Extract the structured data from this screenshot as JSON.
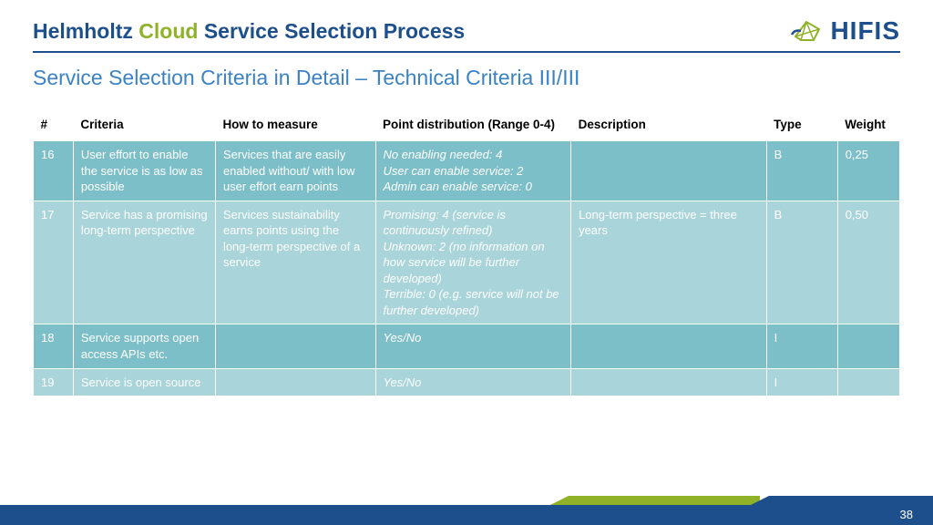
{
  "header": {
    "title_part1": "Helmholtz ",
    "title_part2": "Cloud ",
    "title_part3": "Service Selection Process",
    "logo_text": "HIFIS"
  },
  "subtitle": "Service Selection Criteria in Detail – Technical Criteria III/III",
  "table": {
    "columns": [
      "#",
      "Criteria",
      "How to measure",
      "Point distribution (Range 0-4)",
      "Description",
      "Type",
      "Weight"
    ],
    "rows": [
      {
        "num": "16",
        "criteria": "User effort to enable the service is as low as possible",
        "how": "Services that are easily enabled without/ with low user effort earn points",
        "points": "No enabling needed: 4\nUser can enable service: 2\nAdmin can enable service: 0",
        "desc": "",
        "type": "B",
        "weight": "0,25",
        "shade": "a"
      },
      {
        "num": "17",
        "criteria": "Service has a promising long-term perspective",
        "how": "Services sustainability earns points using the long-term perspective of a service",
        "points": "Promising: 4 (service is continuously refined)\nUnknown: 2 (no information on how service will be further developed)\nTerrible: 0 (e.g. service will not be further developed)",
        "desc": "Long-term perspective = three years",
        "type": "B",
        "weight": "0,50",
        "shade": "b"
      },
      {
        "num": "18",
        "criteria": "Service supports open access APIs etc.",
        "how": "",
        "points": "Yes/No",
        "desc": "",
        "type": "I",
        "weight": "",
        "shade": "a"
      },
      {
        "num": "19",
        "criteria": "Service is open source",
        "how": "",
        "points": "Yes/No",
        "desc": "",
        "type": "I",
        "weight": "",
        "shade": "b"
      }
    ]
  },
  "footer": {
    "page": "38"
  },
  "colors": {
    "brand_blue": "#1d4f8c",
    "brand_green": "#8fb229",
    "subtitle_blue": "#3b82c4",
    "row_a": "#7dbfc9",
    "row_b": "#a8d4da"
  }
}
